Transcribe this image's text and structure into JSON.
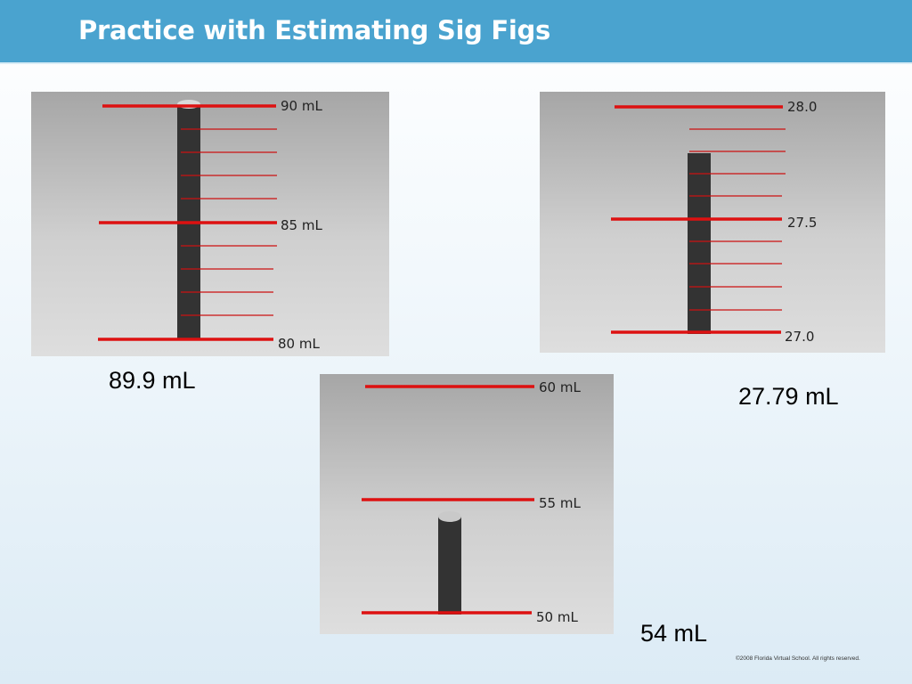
{
  "slide": {
    "title": "Practice with Estimating Sig Figs"
  },
  "cylinders": [
    {
      "labels": [
        "90 mL",
        "85 mL",
        "80 mL"
      ],
      "reading": "89.9 mL"
    },
    {
      "labels": [
        "28.0",
        "27.5",
        "27.0"
      ],
      "reading": "27.79 mL"
    },
    {
      "labels": [
        "60 mL",
        "55 mL",
        "50 mL"
      ],
      "reading": "54 mL"
    }
  ],
  "footer": {
    "copyright": "©2008 Florida Virtual School. All rights reserved."
  }
}
